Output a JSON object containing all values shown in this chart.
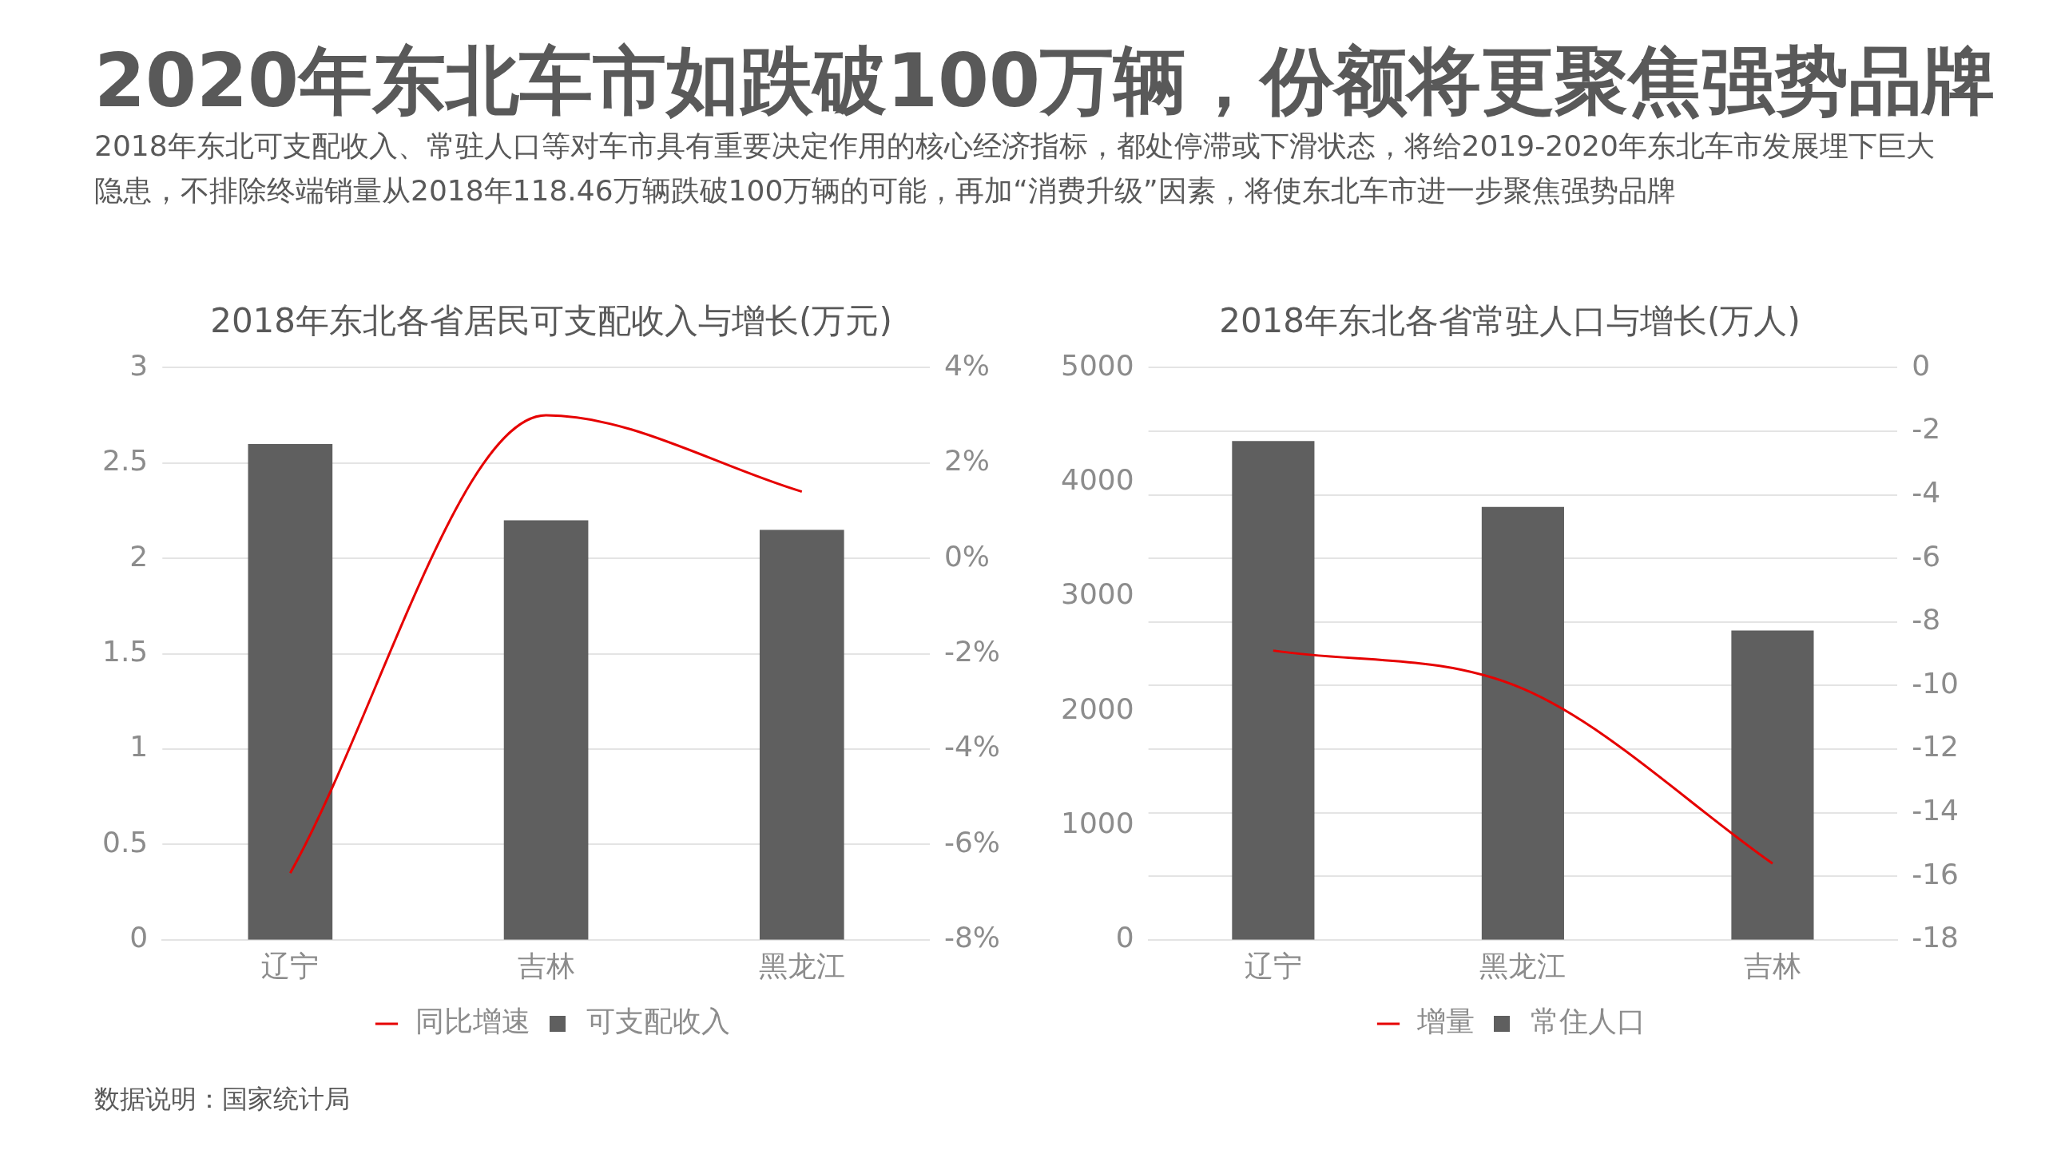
{
  "chart_data": [
    {
      "type": "other",
      "title": "2020年东北车市如跌破100万辆，份额将更聚焦强势品牌",
      "subtitle": "2018年东北可支配收入、常驻人口等对车市具有重要决定作用的核心经济指标，都处停滞或下滑状态，将给2019-2020年东北车市发展埋下巨大隐患，不排除终端销量从2018年118.46万辆跌破100万辆的可能，再加“消费升级”因素，将使东北车市进一步聚焦强势品牌",
      "annotations": [
        "数据说明：国家统计局"
      ]
    },
    {
      "type": "bar",
      "title": "2018年东北各省居民可支配收入与增长(万元)",
      "categories": [
        "辽宁",
        "吉林",
        "黑龙江"
      ],
      "series": [
        {
          "name": "可支配收入",
          "color": "#5f5f5f",
          "values": [
            2.6,
            2.2,
            2.15
          ]
        },
        {
          "name": "同比增速",
          "type": "line",
          "axis": "y2",
          "color": "#e60000",
          "values": [
            -6.6,
            3.0,
            1.4
          ]
        }
      ],
      "ylim": [
        0,
        3
      ],
      "yticks": [
        0,
        0.5,
        1,
        1.5,
        2,
        2.5,
        3
      ],
      "y2lim": [
        -8,
        4
      ],
      "y2ticks": [
        {
          "value": -8,
          "label": "-8%"
        },
        {
          "value": -6,
          "label": "-6%"
        },
        {
          "value": -4,
          "label": "-4%"
        },
        {
          "value": -2,
          "label": "-2%"
        },
        {
          "value": 0,
          "label": "0%"
        },
        {
          "value": 2,
          "label": "2%"
        },
        {
          "value": 4,
          "label": "4%"
        }
      ],
      "grid": true,
      "legend": "bottom",
      "marker": "none"
    },
    {
      "type": "bar",
      "title": "2018年东北各省常驻人口与增长(万人)",
      "categories": [
        "辽宁",
        "黑龙江",
        "吉林"
      ],
      "series": [
        {
          "name": "常住人口",
          "color": "#5f5f5f",
          "values": [
            4359,
            3783,
            2703
          ]
        },
        {
          "name": "增量",
          "type": "line",
          "axis": "y2",
          "color": "#e60000",
          "values": [
            -8.9,
            -10.1,
            -15.6
          ]
        }
      ],
      "ylim": [
        0,
        5000
      ],
      "yticks": [
        0,
        1000,
        2000,
        3000,
        4000,
        5000
      ],
      "y2lim": [
        -18,
        0
      ],
      "y2ticks": [
        -18,
        -16,
        -14,
        -12,
        -10,
        -8,
        -6,
        -4,
        -2,
        0
      ],
      "grid": true,
      "legend": "bottom",
      "marker": "none"
    }
  ]
}
